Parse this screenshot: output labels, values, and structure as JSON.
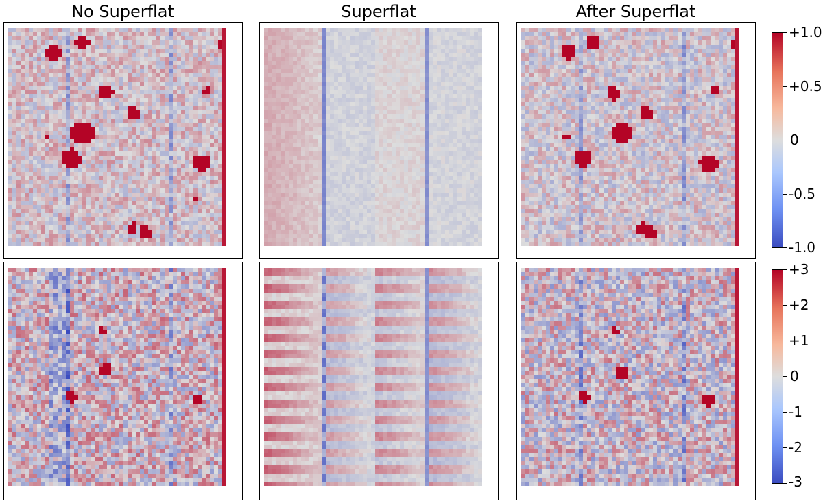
{
  "columns": [
    {
      "title": "No Superflat"
    },
    {
      "title": "Superflat"
    },
    {
      "title": "After Superflat"
    }
  ],
  "colorbars": [
    {
      "ticks": [
        "+1.0",
        "+0.5",
        "0",
        "-0.5",
        "-1.0"
      ]
    },
    {
      "ticks": [
        "+3",
        "+2",
        "+1",
        "0",
        "-1",
        "-2",
        "-3"
      ]
    }
  ],
  "colors": {
    "low": "#3b4cc0",
    "mid": "#dddddd",
    "high": "#b40426"
  }
}
